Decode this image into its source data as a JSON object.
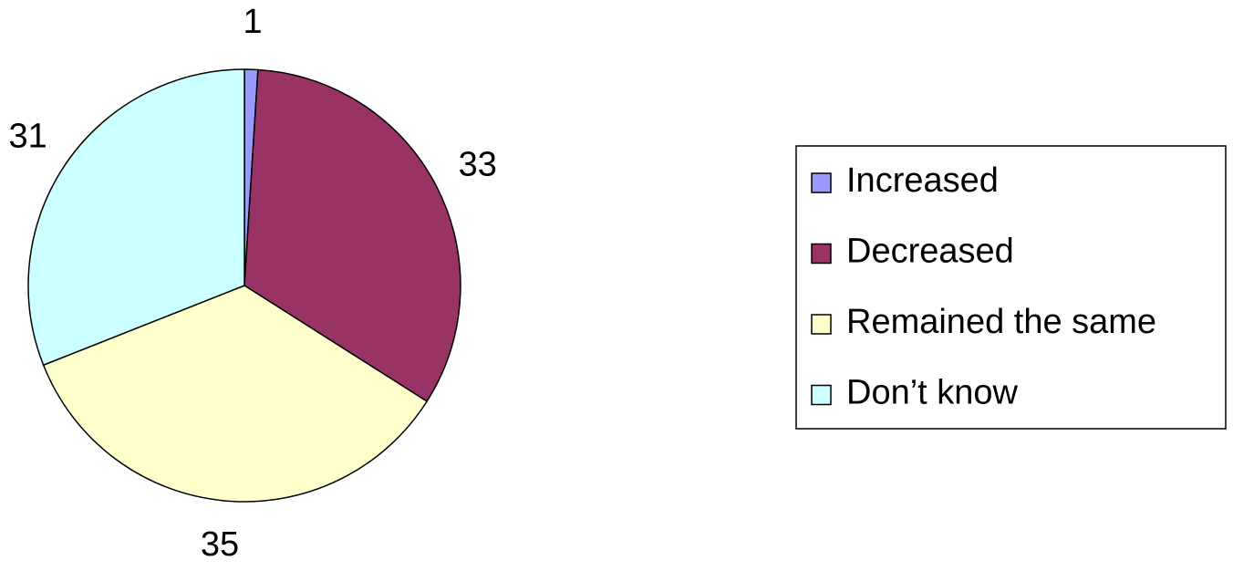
{
  "chart_data": {
    "type": "pie",
    "categories": [
      "Increased",
      "Decreased",
      "Remained the same",
      "Don’t know"
    ],
    "values": [
      1,
      33,
      35,
      31
    ],
    "colors": [
      "#9999ff",
      "#993366",
      "#ffffcc",
      "#ccffff"
    ],
    "legend": "right"
  }
}
